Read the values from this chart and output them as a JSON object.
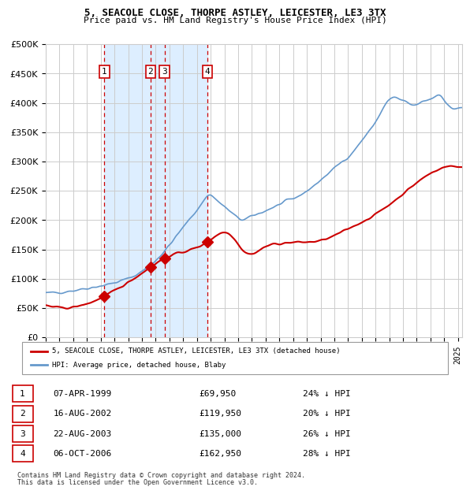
{
  "title1": "5, SEACOLE CLOSE, THORPE ASTLEY, LEICESTER, LE3 3TX",
  "title2": "Price paid vs. HM Land Registry's House Price Index (HPI)",
  "legend_property": "5, SEACOLE CLOSE, THORPE ASTLEY, LEICESTER, LE3 3TX (detached house)",
  "legend_hpi": "HPI: Average price, detached house, Blaby",
  "footer1": "Contains HM Land Registry data © Crown copyright and database right 2024.",
  "footer2": "This data is licensed under the Open Government Licence v3.0.",
  "transactions": [
    {
      "num": 1,
      "date": "07-APR-1999",
      "price": 69950,
      "pct": "24% ↓ HPI",
      "year": 1999.27
    },
    {
      "num": 2,
      "date": "16-AUG-2002",
      "price": 119950,
      "pct": "20% ↓ HPI",
      "year": 2002.62
    },
    {
      "num": 3,
      "date": "22-AUG-2003",
      "price": 135000,
      "pct": "26% ↓ HPI",
      "year": 2003.64
    },
    {
      "num": 4,
      "date": "06-OCT-2006",
      "price": 162950,
      "pct": "28% ↓ HPI",
      "year": 2006.77
    }
  ],
  "property_color": "#cc0000",
  "hpi_color": "#6699cc",
  "shade_color": "#ddeeff",
  "grid_color": "#cccccc",
  "dashed_color": "#cc0000",
  "ylim": [
    0,
    500000
  ],
  "xlim_start": 1995.0,
  "xlim_end": 2025.3,
  "yticks": [
    0,
    50000,
    100000,
    150000,
    200000,
    250000,
    300000,
    350000,
    400000,
    450000,
    500000
  ]
}
